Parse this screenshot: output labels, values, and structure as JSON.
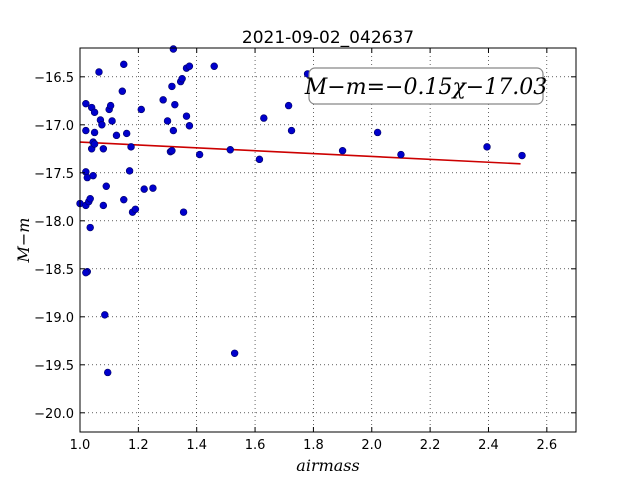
{
  "chart_data": {
    "type": "scatter",
    "title": "2021-09-02_042637",
    "xlabel": "airmass",
    "ylabel": "M−m",
    "xlim": [
      1.0,
      2.7
    ],
    "ylim": [
      -20.2,
      -16.2
    ],
    "y_inverted": true,
    "grid": true,
    "grid_style": "dotted",
    "x_ticks": [
      1.0,
      1.2,
      1.4,
      1.6,
      1.8,
      2.0,
      2.2,
      2.4,
      2.6
    ],
    "x_tick_labels": [
      "1.0",
      "1.2",
      "1.4",
      "1.6",
      "1.8",
      "2.0",
      "2.2",
      "2.4",
      "2.6"
    ],
    "y_ticks": [
      -16.5,
      -17.0,
      -17.5,
      -18.0,
      -18.5,
      -19.0,
      -19.5,
      -20.0
    ],
    "y_tick_labels": [
      "−16.5",
      "−17.0",
      "−17.5",
      "−18.0",
      "−18.5",
      "−19.0",
      "−19.5",
      "−20.0"
    ],
    "annotation": "M−m=−0.15χ−17.03",
    "colors": {
      "points": "#0000cc",
      "fit_line": "#cc0000"
    },
    "fit": {
      "slope": -0.15,
      "intercept": -17.03,
      "x_range": [
        1.0,
        2.51
      ]
    },
    "series": [
      {
        "points": [
          [
            1.0,
            -17.82
          ],
          [
            1.02,
            -17.84
          ],
          [
            1.02,
            -16.78
          ],
          [
            1.02,
            -17.06
          ],
          [
            1.02,
            -17.49
          ],
          [
            1.025,
            -17.55
          ],
          [
            1.025,
            -18.53
          ],
          [
            1.02,
            -18.54
          ],
          [
            1.03,
            -17.8
          ],
          [
            1.035,
            -17.77
          ],
          [
            1.035,
            -18.07
          ],
          [
            1.04,
            -16.82
          ],
          [
            1.04,
            -17.25
          ],
          [
            1.045,
            -17.53
          ],
          [
            1.045,
            -17.18
          ],
          [
            1.05,
            -16.87
          ],
          [
            1.05,
            -17.08
          ],
          [
            1.05,
            -17.2
          ],
          [
            1.065,
            -16.45
          ],
          [
            1.07,
            -16.95
          ],
          [
            1.075,
            -17.0
          ],
          [
            1.08,
            -17.25
          ],
          [
            1.08,
            -17.84
          ],
          [
            1.085,
            -18.98
          ],
          [
            1.09,
            -17.64
          ],
          [
            1.095,
            -19.58
          ],
          [
            1.1,
            -16.84
          ],
          [
            1.105,
            -16.8
          ],
          [
            1.11,
            -16.96
          ],
          [
            1.125,
            -17.11
          ],
          [
            1.145,
            -16.65
          ],
          [
            1.15,
            -16.37
          ],
          [
            1.15,
            -17.78
          ],
          [
            1.16,
            -17.09
          ],
          [
            1.17,
            -17.48
          ],
          [
            1.175,
            -17.23
          ],
          [
            1.18,
            -17.91
          ],
          [
            1.19,
            -17.88
          ],
          [
            1.21,
            -16.84
          ],
          [
            1.22,
            -17.67
          ],
          [
            1.25,
            -17.66
          ],
          [
            1.285,
            -16.74
          ],
          [
            1.3,
            -16.96
          ],
          [
            1.31,
            -17.28
          ],
          [
            1.315,
            -17.27
          ],
          [
            1.315,
            -16.6
          ],
          [
            1.32,
            -17.06
          ],
          [
            1.32,
            -16.18
          ],
          [
            1.325,
            -16.79
          ],
          [
            1.345,
            -16.55
          ],
          [
            1.35,
            -16.52
          ],
          [
            1.355,
            -17.91
          ],
          [
            1.365,
            -16.91
          ],
          [
            1.365,
            -16.41
          ],
          [
            1.375,
            -16.39
          ],
          [
            1.375,
            -17.01
          ],
          [
            1.41,
            -17.31
          ],
          [
            1.46,
            -16.39
          ],
          [
            1.515,
            -17.26
          ],
          [
            1.53,
            -19.38
          ],
          [
            1.615,
            -17.36
          ],
          [
            1.63,
            -16.93
          ],
          [
            1.715,
            -16.8
          ],
          [
            1.725,
            -17.06
          ],
          [
            1.78,
            -16.47
          ],
          [
            1.9,
            -17.27
          ],
          [
            2.02,
            -17.08
          ],
          [
            2.1,
            -17.31
          ],
          [
            2.395,
            -17.23
          ],
          [
            2.515,
            -17.32
          ]
        ]
      }
    ]
  }
}
